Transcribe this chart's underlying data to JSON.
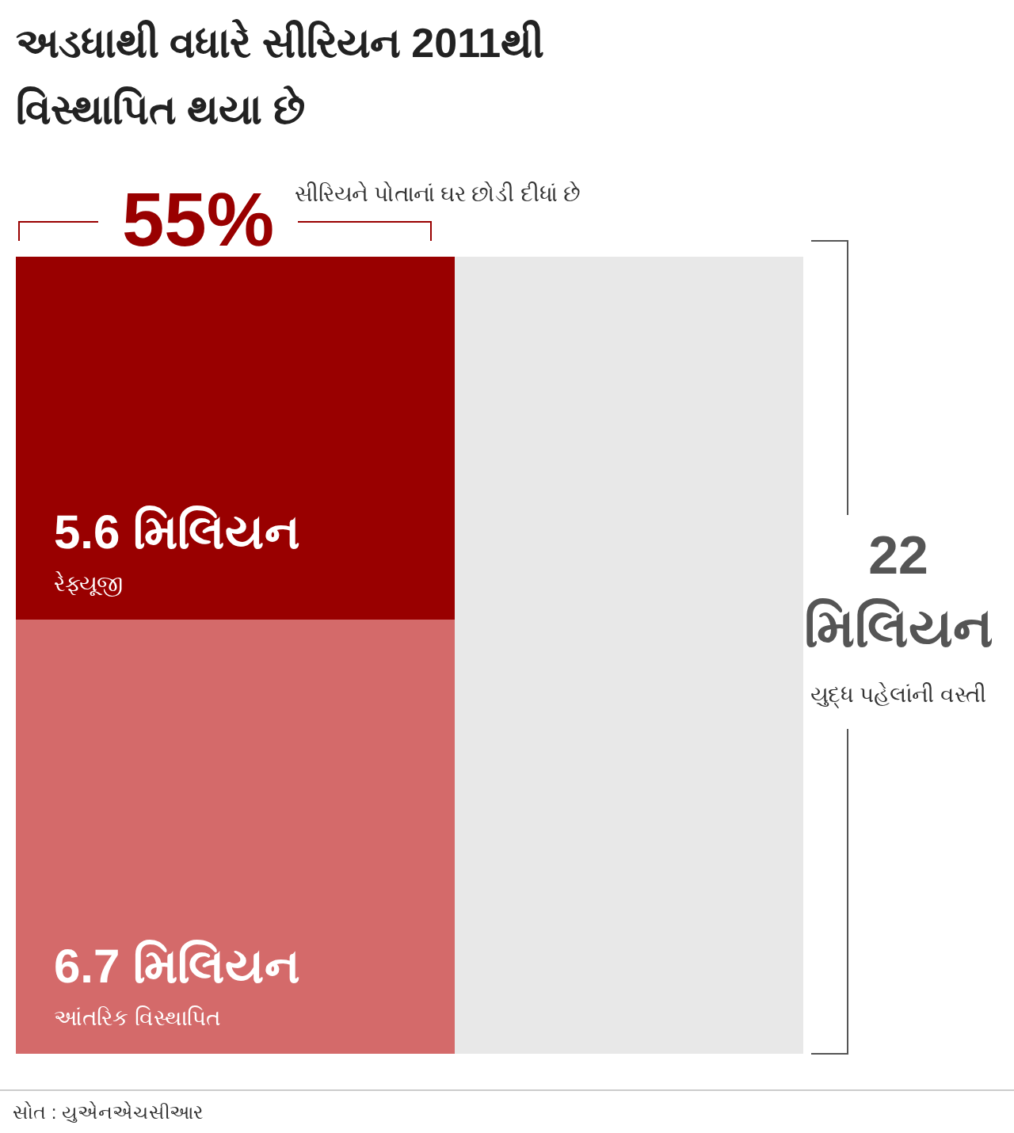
{
  "chart_data": {
    "type": "other",
    "title": "અડધાથી વધારે સીરિયન 2011થી વિસ્થાપિત થયા છે",
    "categories": [
      "રેફ્યૂજી",
      "આંતરિક વિસ્થાપિત"
    ],
    "values": [
      5.6,
      6.7
    ],
    "value_labels": [
      "5.6 મિલિયન",
      "6.7 મિલિયન"
    ],
    "colors": [
      "#990000",
      "#d46a6a"
    ],
    "annotations": [
      "55%",
      "સીરિયને પોતાનાં ઘર છોડી દીધાં છે",
      "22 મિલિયન",
      "યુદ્ધ પહેલાંની વસ્તી",
      "સોત : યુએનએચસીઆર"
    ]
  }
}
